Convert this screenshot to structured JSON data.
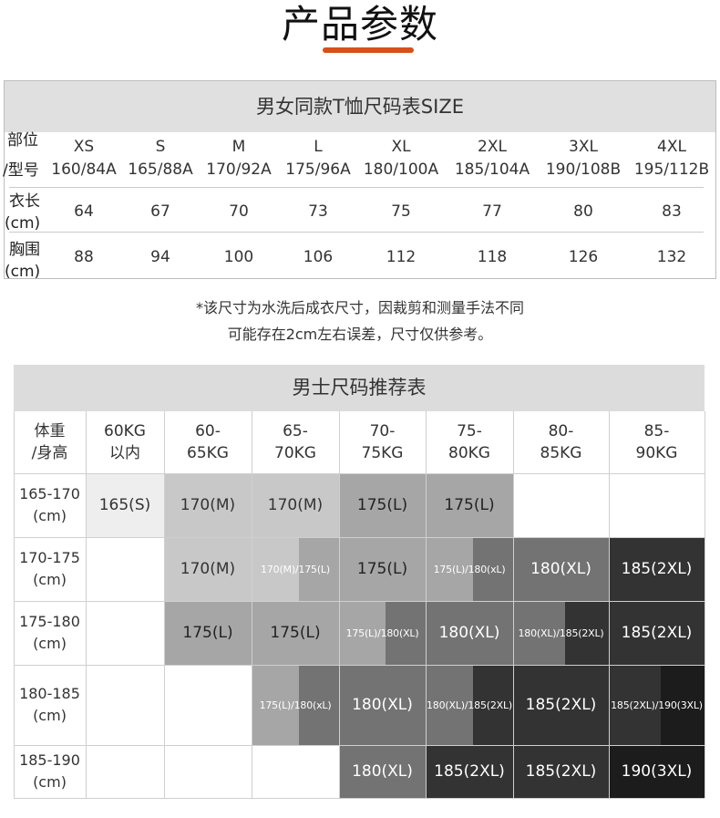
{
  "page_title": "产品参数",
  "colors": {
    "accent": "#d6501a",
    "header_bg": "#e0e0e0",
    "shade_1": "#eeeeee",
    "shade_2": "#c8c8c8",
    "shade_3": "#a6a6a6",
    "shade_4": "#737373",
    "shade_5": "#4a4a4a",
    "shade_6": "#333333",
    "shade_7": "#1c1c1c"
  },
  "size_chart": {
    "title": "男女同款T恤尺码表SIZE",
    "row_labels": {
      "part_line1": "部位",
      "part_line2": "/型号",
      "length_line1": "衣长",
      "length_line2": "(cm)",
      "chest_line1": "胸围",
      "chest_line2": "(cm)"
    },
    "sizes": [
      {
        "size": "XS",
        "model": "160/84A",
        "length": "64",
        "chest": "88"
      },
      {
        "size": "S",
        "model": "165/88A",
        "length": "67",
        "chest": "94"
      },
      {
        "size": "M",
        "model": "170/92A",
        "length": "70",
        "chest": "100"
      },
      {
        "size": "L",
        "model": "175/96A",
        "length": "73",
        "chest": "106"
      },
      {
        "size": "XL",
        "model": "180/100A",
        "length": "75",
        "chest": "112"
      },
      {
        "size": "2XL",
        "model": "185/104A",
        "length": "77",
        "chest": "118"
      },
      {
        "size": "3XL",
        "model": "190/108B",
        "length": "80",
        "chest": "126"
      },
      {
        "size": "4XL",
        "model": "195/112B",
        "length": "83",
        "chest": "132"
      }
    ]
  },
  "note": {
    "line1": "*该尺寸为水洗后成衣尺寸，因裁剪和测量手法不同",
    "line2": "可能存在2cm左右误差，尺寸仅供参考。"
  },
  "recommendation": {
    "title": "男士尺码推荐表",
    "corner_line1": "体重",
    "corner_line2": "/身高",
    "weights": [
      {
        "line1": "60KG",
        "line2": "以内"
      },
      {
        "line1": "60-",
        "line2": "65KG"
      },
      {
        "line1": "65-",
        "line2": "70KG"
      },
      {
        "line1": "70-",
        "line2": "75KG"
      },
      {
        "line1": "75-",
        "line2": "80KG"
      },
      {
        "line1": "80-",
        "line2": "85KG"
      },
      {
        "line1": "85-",
        "line2": "90KG"
      }
    ],
    "heights": [
      {
        "line1": "165-170",
        "line2": "(cm)"
      },
      {
        "line1": "170-175",
        "line2": "(cm)"
      },
      {
        "line1": "175-180",
        "line2": "(cm)"
      },
      {
        "line1": "180-185",
        "line2": "(cm)"
      },
      {
        "line1": "185-190",
        "line2": "(cm)"
      }
    ],
    "rows": [
      [
        {
          "label": "165(S)",
          "shade": 1
        },
        {
          "label": "170(M)",
          "shade": 2
        },
        {
          "label": "170(M)",
          "shade": 2
        },
        {
          "label": "175(L)",
          "shade": 3
        },
        {
          "label": "175(L)",
          "shade": 3
        },
        {
          "label": "",
          "shade": 0
        },
        {
          "label": "",
          "shade": 0
        }
      ],
      [
        {
          "label": "",
          "shade": 0
        },
        {
          "label": "170(M)",
          "shade": 2
        },
        {
          "label": "170(M)/175(L)",
          "split": [
            2,
            3
          ],
          "small": true
        },
        {
          "label": "175(L)",
          "shade": 3
        },
        {
          "label": "175(L)/180(xL)",
          "split": [
            3,
            4
          ],
          "small": true
        },
        {
          "label": "180(XL)",
          "shade": 4
        },
        {
          "label": "185(2XL)",
          "shade": 6
        }
      ],
      [
        {
          "label": "",
          "shade": 0
        },
        {
          "label": "175(L)",
          "shade": 3
        },
        {
          "label": "175(L)",
          "shade": 3
        },
        {
          "label": "175(L)/180(XL)",
          "split": [
            3,
            4
          ],
          "small": true
        },
        {
          "label": "180(XL)",
          "shade": 4
        },
        {
          "label": "180(XL)/185(2XL)",
          "split": [
            4,
            6
          ],
          "small": true
        },
        {
          "label": "185(2XL)",
          "shade": 6
        }
      ],
      [
        {
          "label": "",
          "shade": 0
        },
        {
          "label": "",
          "shade": 0
        },
        {
          "label": "175(L)/180(xL)",
          "split": [
            3,
            4
          ],
          "small": true
        },
        {
          "label": "180(XL)",
          "shade": 4
        },
        {
          "label": "180(XL)/185(2XL)",
          "split": [
            4,
            6
          ],
          "small": true
        },
        {
          "label": "185(2XL)",
          "shade": 6
        },
        {
          "label": "185(2XL)/190(3XL)",
          "split": [
            6,
            7
          ],
          "small": true
        }
      ],
      [
        {
          "label": "",
          "shade": 0
        },
        {
          "label": "",
          "shade": 0
        },
        {
          "label": "",
          "shade": 0
        },
        {
          "label": "180(XL)",
          "shade": 4
        },
        {
          "label": "185(2XL)",
          "shade": 6
        },
        {
          "label": "185(2XL)",
          "shade": 6
        },
        {
          "label": "190(3XL)",
          "shade": 7
        }
      ]
    ]
  }
}
